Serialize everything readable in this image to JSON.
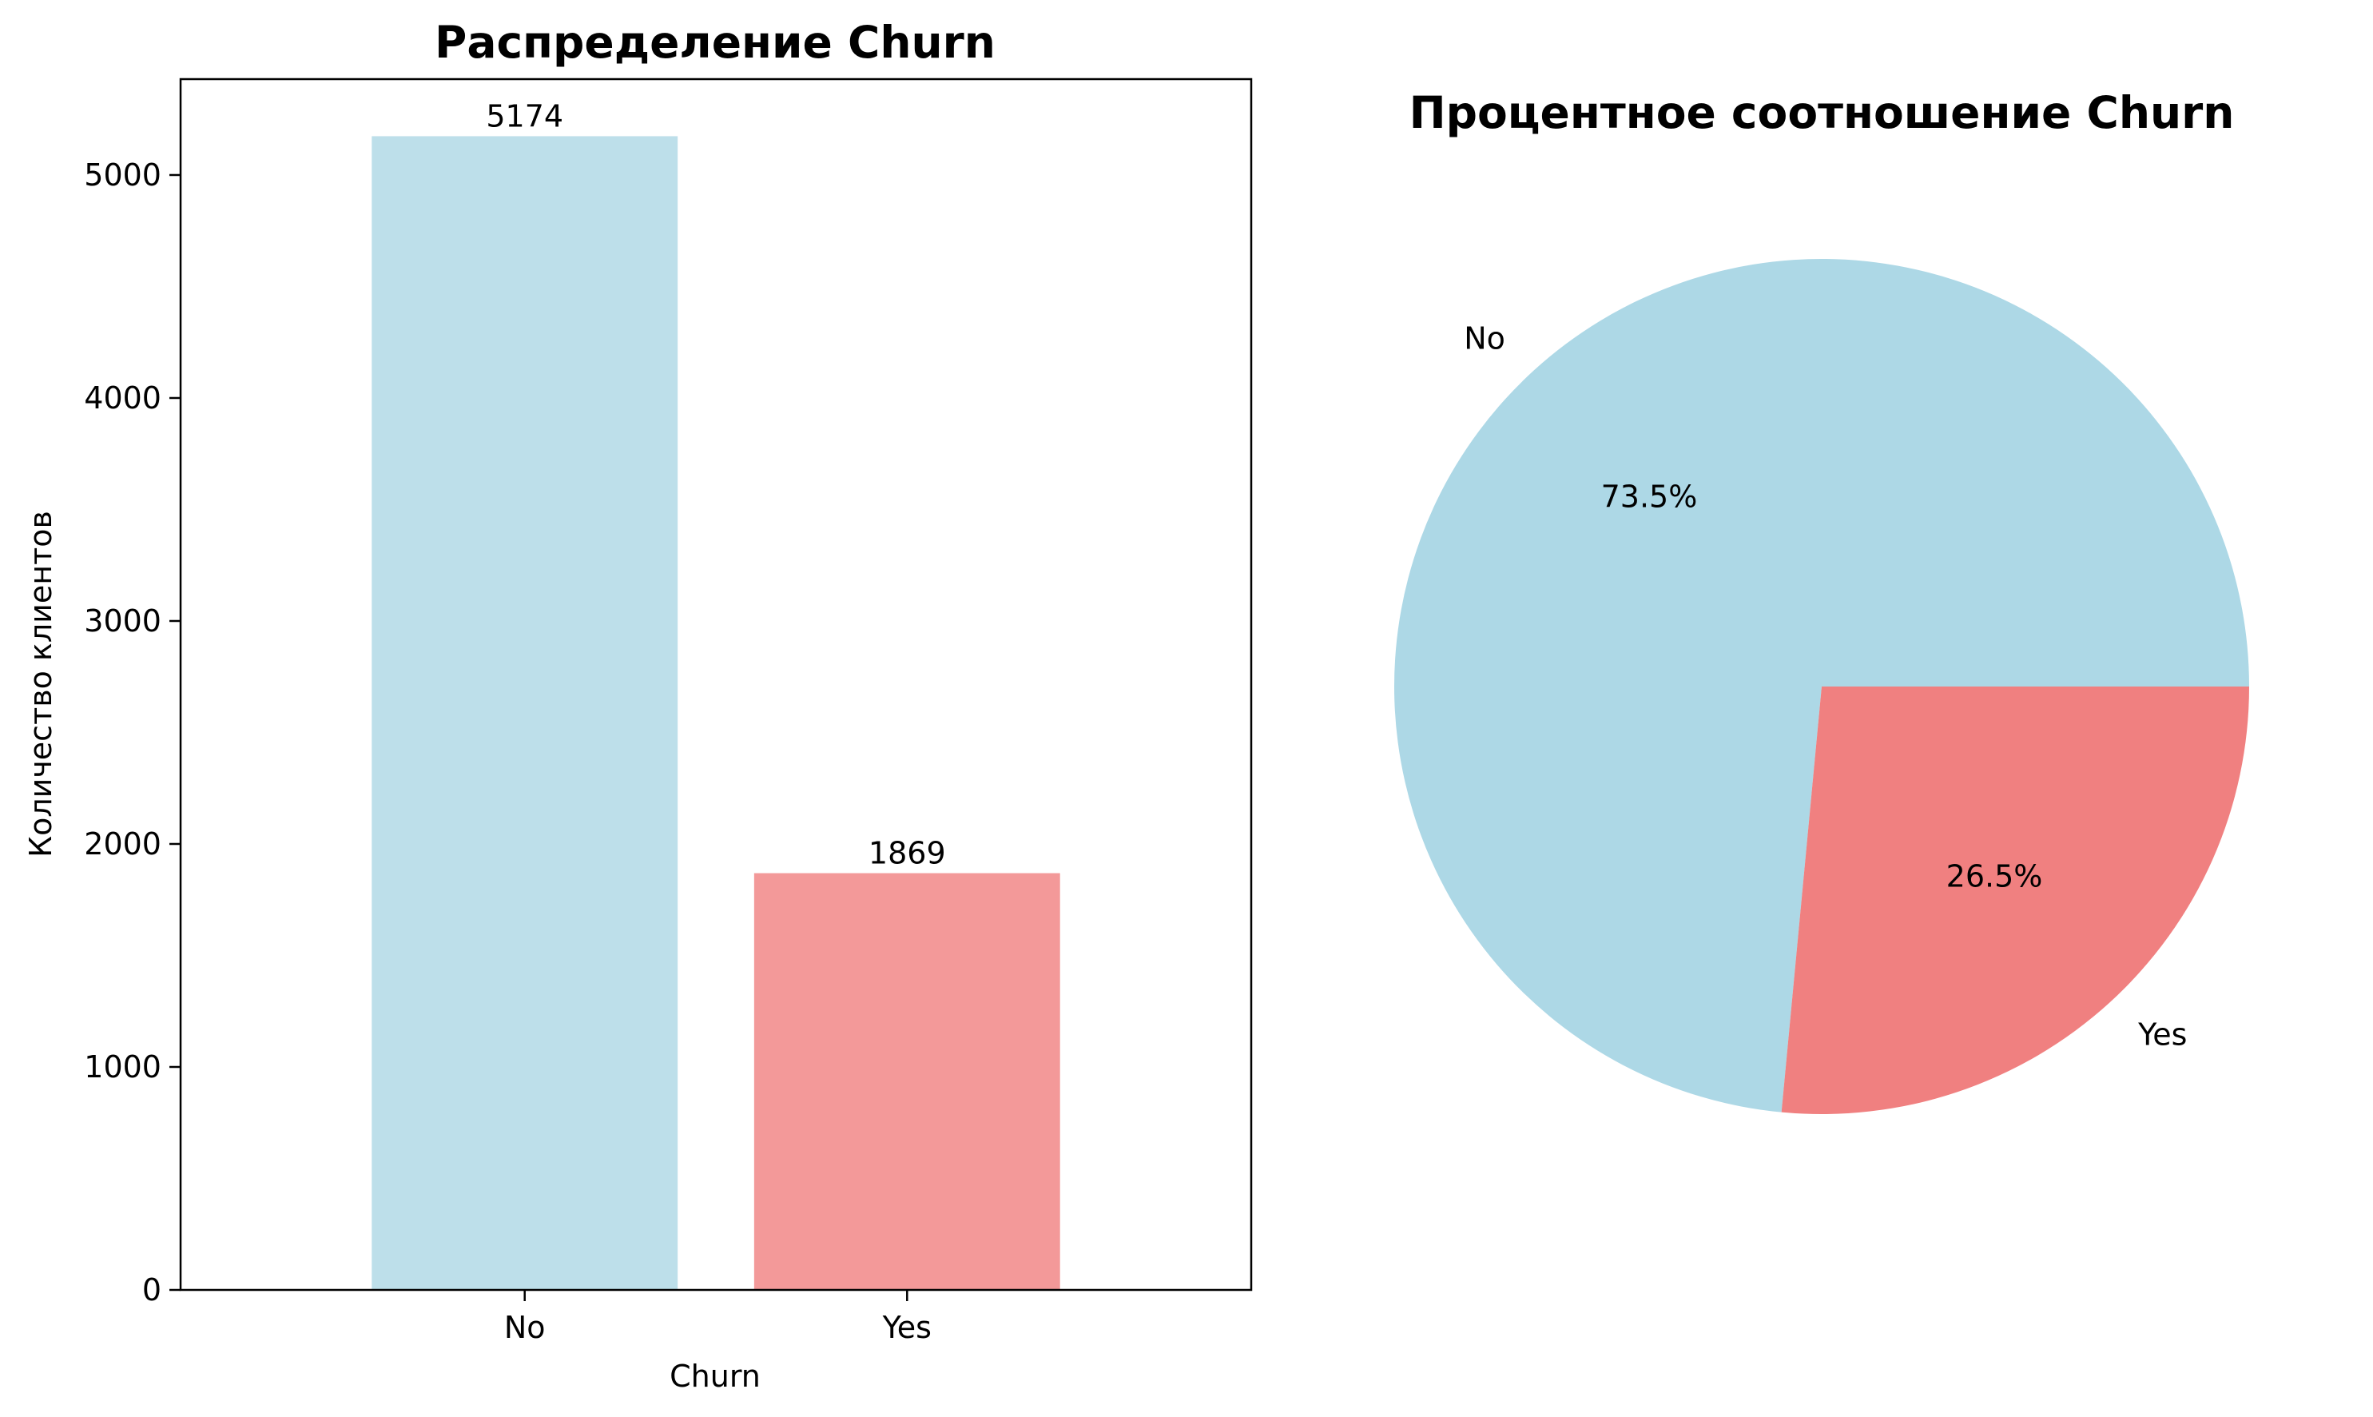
{
  "chart_data": [
    {
      "type": "bar",
      "title": "Распределение Churn",
      "xlabel": "Churn",
      "ylabel": "Количество клиентов",
      "categories": [
        "No",
        "Yes"
      ],
      "values": [
        5174,
        1869
      ],
      "data_labels": [
        "5174",
        "1869"
      ],
      "colors": [
        "#bddfea",
        "#f39999"
      ],
      "ylim": [
        0,
        5430
      ],
      "yticks": [
        0,
        1000,
        2000,
        3000,
        4000,
        5000
      ],
      "ytick_labels": [
        "0",
        "1000",
        "2000",
        "3000",
        "4000",
        "5000"
      ],
      "grid": false,
      "legend": "none"
    },
    {
      "type": "pie",
      "title": "Процентное соотношение Churn",
      "slices": [
        {
          "label": "No",
          "value": 73.5,
          "pct_label": "73.5%",
          "color": "#add8e6"
        },
        {
          "label": "Yes",
          "value": 26.5,
          "pct_label": "26.5%",
          "color": "#f08080"
        }
      ],
      "start_angle_deg": 0,
      "direction": "counterclockwise",
      "legend": "none"
    }
  ]
}
